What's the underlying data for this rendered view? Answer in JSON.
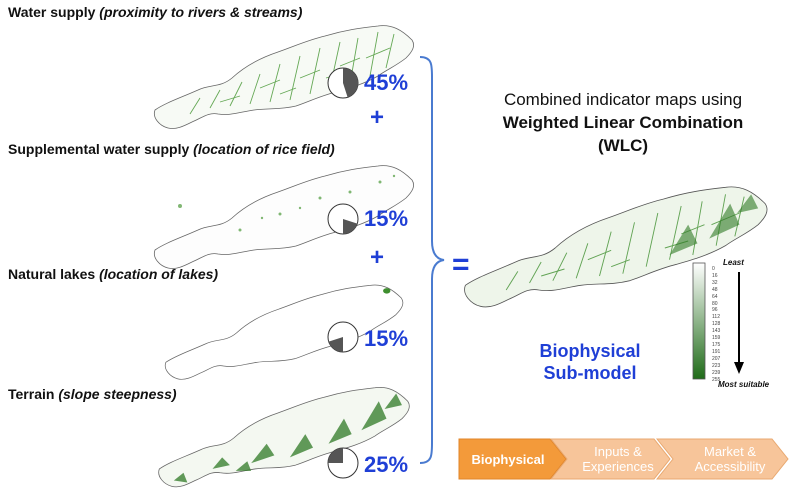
{
  "indicators": [
    {
      "name": "Water supply",
      "detail": "(proximity to rivers & streams)",
      "weight": "45%",
      "fraction": 0.45
    },
    {
      "name": "Supplemental water supply",
      "detail": "(location of rice field)",
      "weight": "15%",
      "fraction": 0.15
    },
    {
      "name": "Natural lakes",
      "detail": "(location of lakes)",
      "weight": "15%",
      "fraction": 0.15
    },
    {
      "name": "Terrain",
      "detail": "(slope steepness)",
      "weight": "25%",
      "fraction": 0.25
    }
  ],
  "plus_symbol": "+",
  "equals_symbol": "=",
  "combined": {
    "line1": "Combined indicator maps using",
    "line2": "Weighted Linear Combination",
    "line3": "(WLC)"
  },
  "submodel": {
    "line1": "Biophysical",
    "line2": "Sub-model"
  },
  "legend": {
    "least_label": "Least",
    "most_label": "Most suitable",
    "ticks": [
      "0",
      "16",
      "32",
      "48",
      "64",
      "80",
      "96",
      "112",
      "128",
      "143",
      "159",
      "175",
      "191",
      "207",
      "223",
      "239",
      "255"
    ]
  },
  "process": [
    {
      "line1": "Biophysical",
      "line2": "",
      "active": true
    },
    {
      "line1": "Inputs &",
      "line2": "Experiences",
      "active": false
    },
    {
      "line1": "Market &",
      "line2": "Accessibility",
      "active": false
    }
  ],
  "colors": {
    "accent_blue": "#1f3fd6",
    "map_green": "#3f8f2f",
    "active_step": "#f39a3a",
    "inactive_step": "#f7c59a"
  }
}
